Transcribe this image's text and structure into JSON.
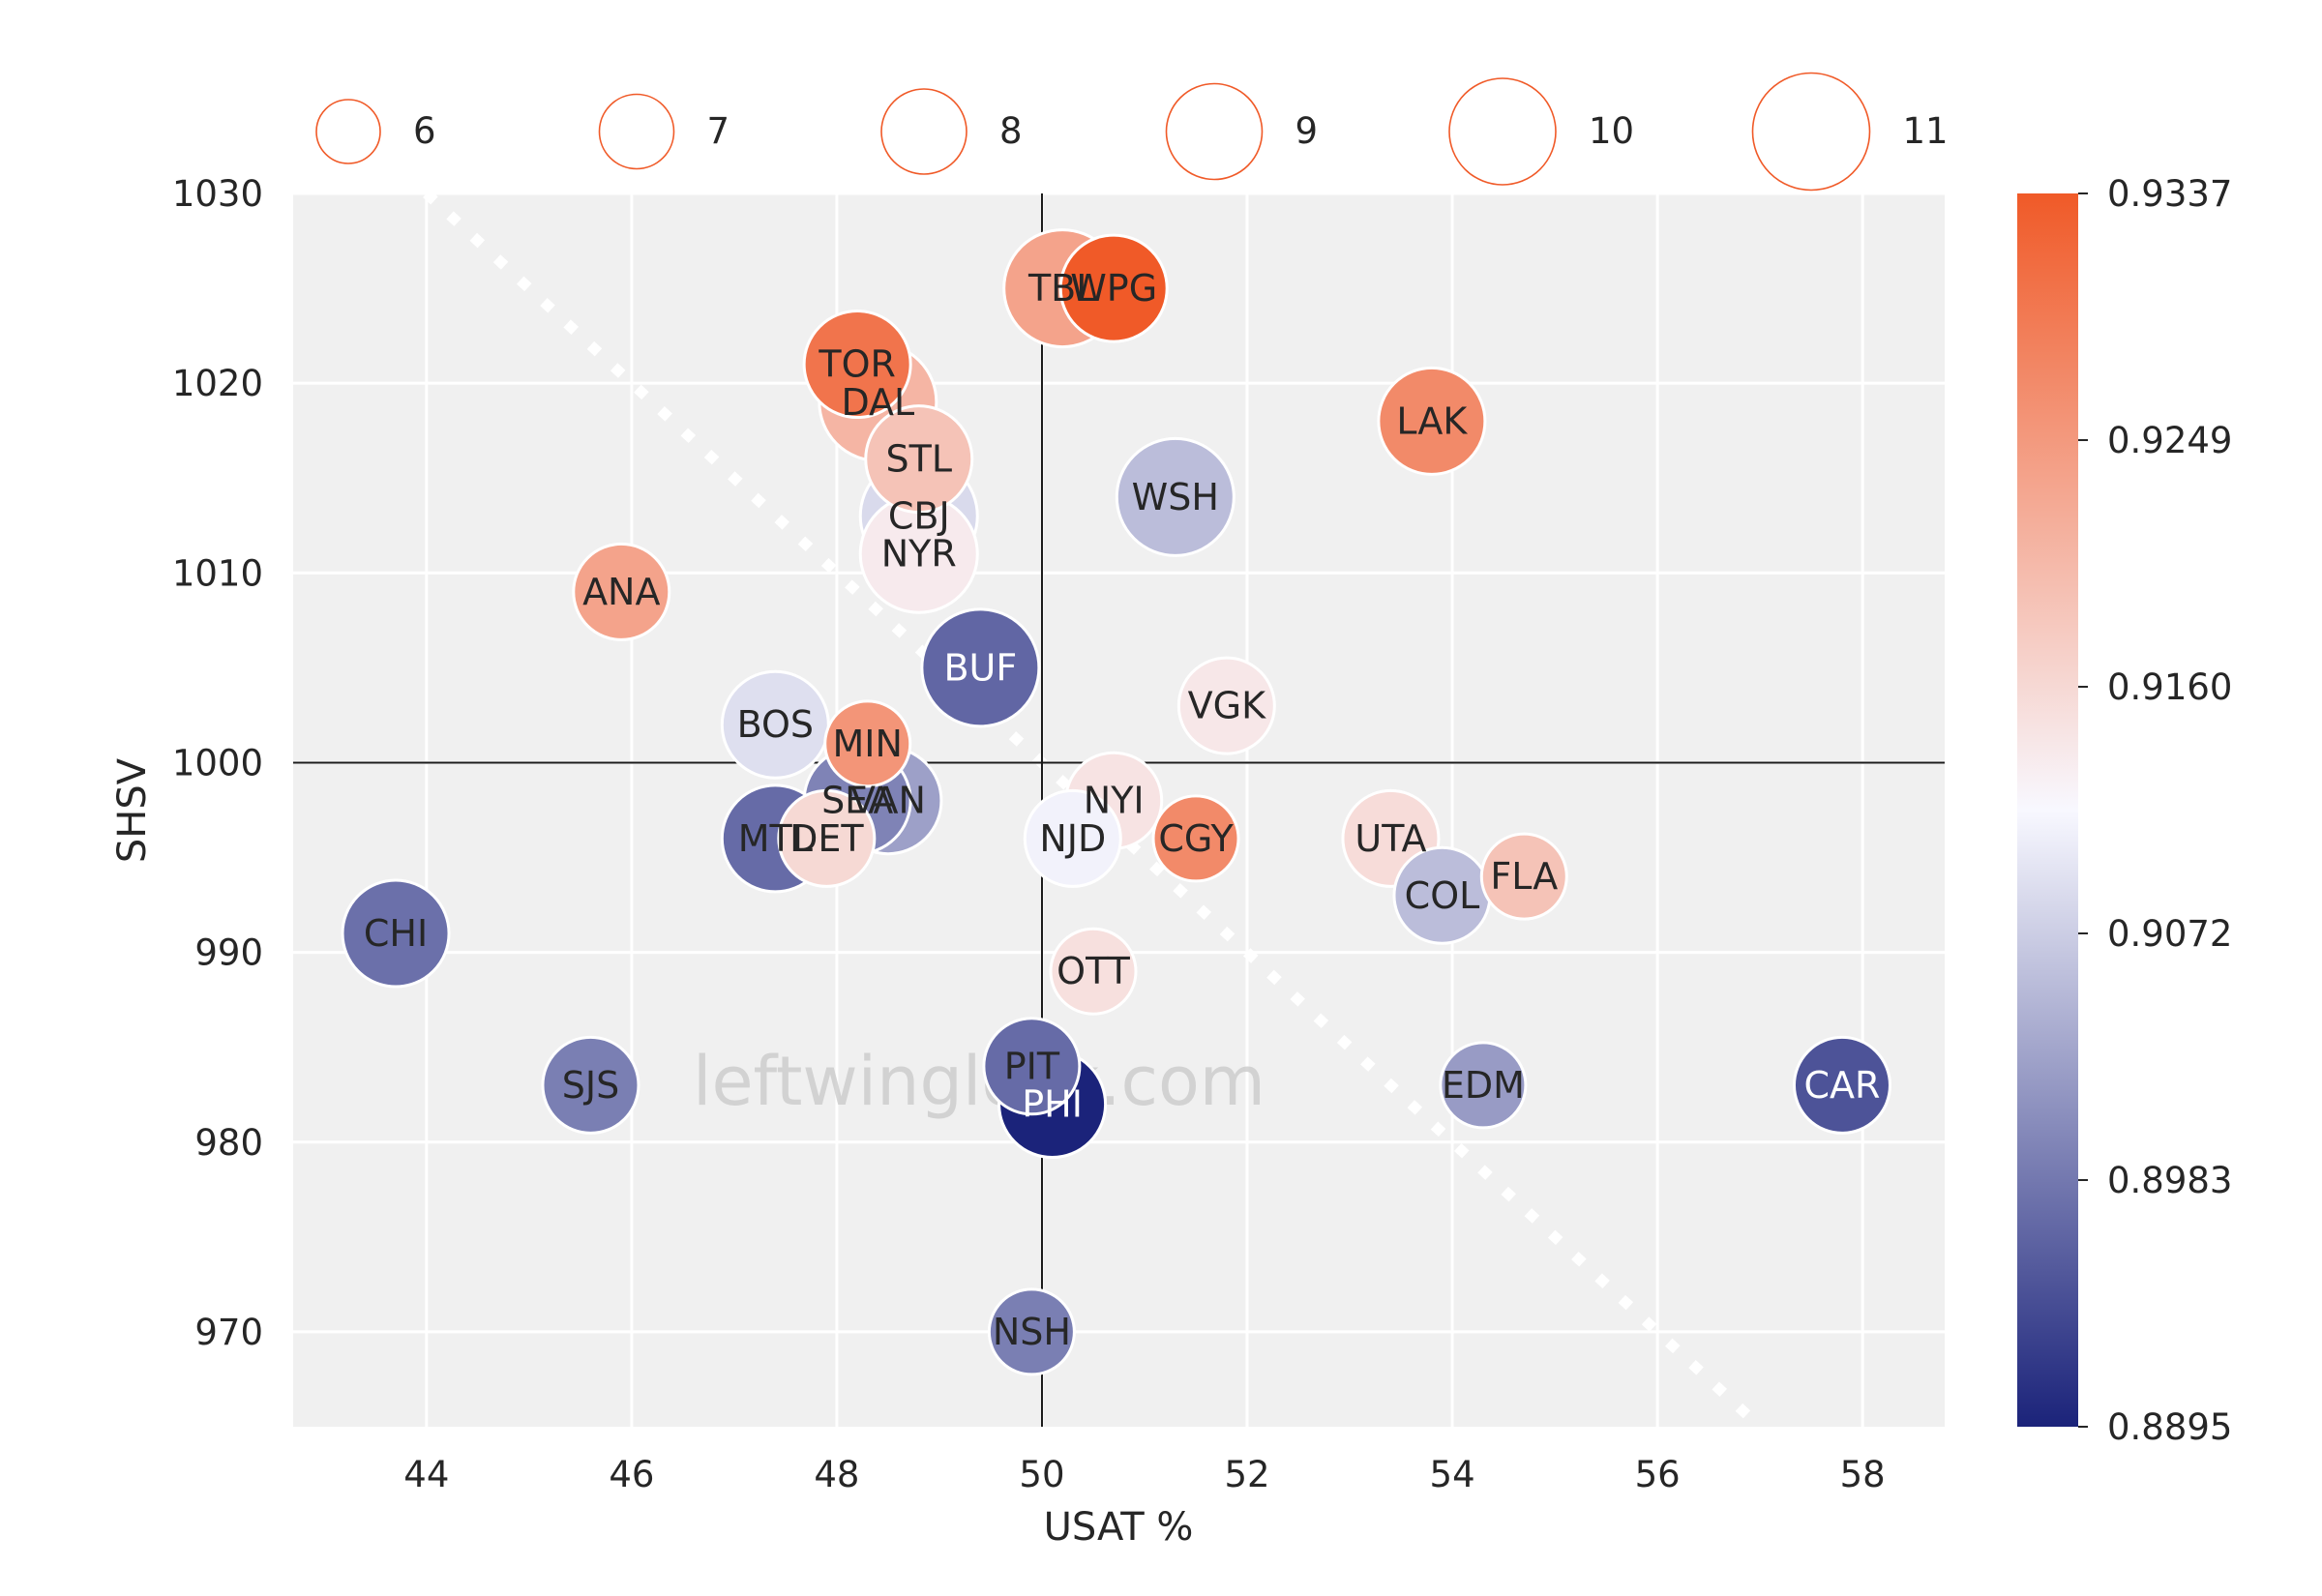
{
  "chart_data": {
    "type": "scatter",
    "title": "",
    "xlabel": "USAT %",
    "ylabel": "SHSV",
    "xlim": [
      42.7,
      58.8
    ],
    "ylim": [
      965,
      1030
    ],
    "x_ticks": [
      44,
      46,
      48,
      50,
      52,
      54,
      56,
      58
    ],
    "y_ticks": [
      970,
      980,
      990,
      1000,
      1010,
      1020,
      1030
    ],
    "grid": true,
    "reference_lines": {
      "x": 50,
      "y": 1000
    },
    "trend_line": {
      "x": [
        44,
        57
      ],
      "y": [
        1030,
        965
      ],
      "style": "dotted",
      "color": "#ffffff"
    },
    "size_legend": {
      "placement": "top",
      "values": [
        6,
        7,
        8,
        9,
        10,
        11
      ]
    },
    "colorbar": {
      "ticks": [
        "0.9337",
        "0.9249",
        "0.9160",
        "0.9072",
        "0.8983",
        "0.8895"
      ],
      "min": 0.8895,
      "max": 0.9337,
      "low_color": "#1b237a",
      "mid_color": "#f8f8ff",
      "high_color": "#f05a28"
    },
    "watermark": "leftwinglock.com",
    "points": [
      {
        "team": "TBL",
        "x": 50.2,
        "y": 1025,
        "size": 11,
        "color_value": 0.9235
      },
      {
        "team": "WPG",
        "x": 50.7,
        "y": 1025,
        "size": 10,
        "color_value": 0.9337
      },
      {
        "team": "TOR",
        "x": 48.2,
        "y": 1021,
        "size": 10,
        "color_value": 0.93
      },
      {
        "team": "DAL",
        "x": 48.4,
        "y": 1019,
        "size": 11,
        "color_value": 0.921
      },
      {
        "team": "LAK",
        "x": 53.8,
        "y": 1018,
        "size": 10,
        "color_value": 0.927
      },
      {
        "team": "STL",
        "x": 48.8,
        "y": 1016,
        "size": 10,
        "color_value": 0.919
      },
      {
        "team": "WSH",
        "x": 51.3,
        "y": 1014,
        "size": 11,
        "color_value": 0.9055
      },
      {
        "team": "CBJ",
        "x": 48.8,
        "y": 1013,
        "size": 11,
        "color_value": 0.9085
      },
      {
        "team": "NYR",
        "x": 48.8,
        "y": 1011,
        "size": 11,
        "color_value": 0.9135
      },
      {
        "team": "ANA",
        "x": 45.9,
        "y": 1009,
        "size": 9,
        "color_value": 0.9235
      },
      {
        "team": "BUF",
        "x": 49.4,
        "y": 1005,
        "size": 11,
        "color_value": 0.8965
      },
      {
        "team": "VGK",
        "x": 51.8,
        "y": 1003,
        "size": 9,
        "color_value": 0.914
      },
      {
        "team": "BOS",
        "x": 47.4,
        "y": 1002,
        "size": 10,
        "color_value": 0.909
      },
      {
        "team": "MIN",
        "x": 48.3,
        "y": 1001,
        "size": 8,
        "color_value": 0.9255
      },
      {
        "team": "VAN",
        "x": 48.5,
        "y": 998,
        "size": 10,
        "color_value": 0.9025
      },
      {
        "team": "SEA",
        "x": 48.2,
        "y": 998,
        "size": 10,
        "color_value": 0.8995
      },
      {
        "team": "NYI",
        "x": 50.7,
        "y": 998,
        "size": 9,
        "color_value": 0.9145
      },
      {
        "team": "DET",
        "x": 47.9,
        "y": 996,
        "size": 9,
        "color_value": 0.916
      },
      {
        "team": "MTL",
        "x": 47.4,
        "y": 996,
        "size": 10,
        "color_value": 0.897
      },
      {
        "team": "NJD",
        "x": 50.3,
        "y": 996,
        "size": 9,
        "color_value": 0.911
      },
      {
        "team": "CGY",
        "x": 51.5,
        "y": 996,
        "size": 8,
        "color_value": 0.927
      },
      {
        "team": "UTA",
        "x": 53.4,
        "y": 996,
        "size": 9,
        "color_value": 0.9155
      },
      {
        "team": "COL",
        "x": 53.9,
        "y": 993,
        "size": 9,
        "color_value": 0.9055
      },
      {
        "team": "FLA",
        "x": 54.7,
        "y": 994,
        "size": 8,
        "color_value": 0.919
      },
      {
        "team": "CHI",
        "x": 43.7,
        "y": 991,
        "size": 10,
        "color_value": 0.8975
      },
      {
        "team": "OTT",
        "x": 50.5,
        "y": 989,
        "size": 8,
        "color_value": 0.915
      },
      {
        "team": "SJS",
        "x": 45.6,
        "y": 983,
        "size": 9,
        "color_value": 0.899
      },
      {
        "team": "PIT",
        "x": 49.9,
        "y": 984,
        "size": 9,
        "color_value": 0.897
      },
      {
        "team": "PHI",
        "x": 50.1,
        "y": 982,
        "size": 10,
        "color_value": 0.8895
      },
      {
        "team": "EDM",
        "x": 54.3,
        "y": 983,
        "size": 8,
        "color_value": 0.902
      },
      {
        "team": "CAR",
        "x": 57.8,
        "y": 983,
        "size": 9,
        "color_value": 0.8945
      },
      {
        "team": "NSH",
        "x": 49.9,
        "y": 970,
        "size": 8,
        "color_value": 0.899
      }
    ]
  }
}
